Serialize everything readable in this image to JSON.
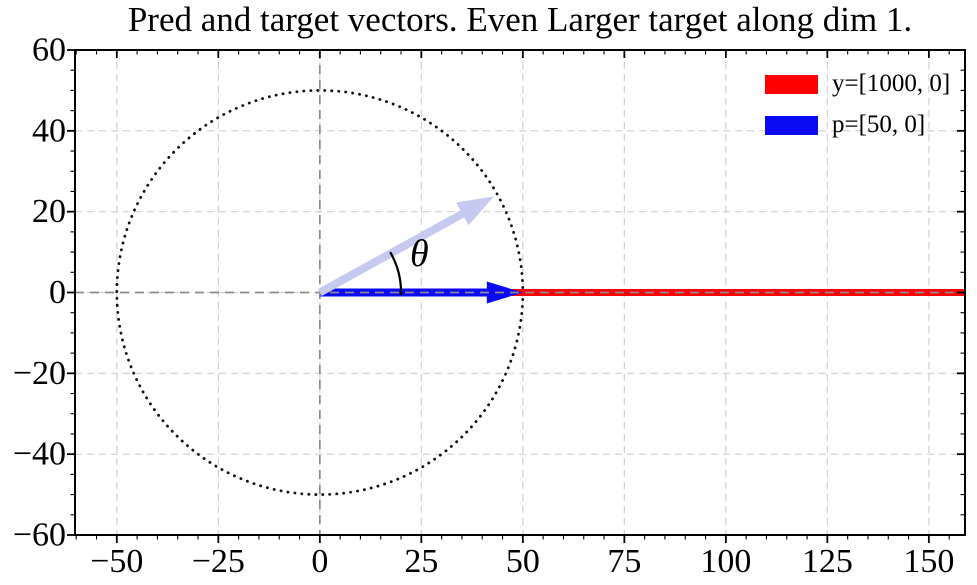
{
  "chart_data": {
    "type": "line",
    "subtype": "vector-diagram (quiver)",
    "title": "Pred and target vectors. Even Larger target along dim 1.",
    "xlim": [
      -60.3,
      158.9
    ],
    "ylim": [
      -60,
      60
    ],
    "x_major_ticks": [
      -50,
      -25,
      0,
      25,
      50,
      75,
      100,
      125,
      150
    ],
    "y_major_ticks": [
      -60,
      -40,
      -20,
      0,
      20,
      40,
      60
    ],
    "minor_tick_step": 5,
    "grid": {
      "on": true,
      "color": "#cfcfcf",
      "style": "dashed"
    },
    "axis_lines": {
      "x": 0,
      "y": 0,
      "color": "#8c8c8c",
      "style": "dashed"
    },
    "unit_circle": {
      "center": [
        0,
        0
      ],
      "radius": 50,
      "color": "#111111",
      "style": "dotted"
    },
    "vectors": [
      {
        "name": "y",
        "from": [
          0,
          0
        ],
        "to": [
          1000,
          0
        ],
        "color": "#ff0000",
        "label": "y=[1000, 0]"
      },
      {
        "name": "p",
        "from": [
          0,
          0
        ],
        "to": [
          50,
          0
        ],
        "color": "#0a0af5",
        "label": "p=[50, 0]"
      }
    ],
    "direction_arrow": {
      "from": [
        0,
        0
      ],
      "angle_deg": 29,
      "length": 49,
      "color": "#c6c9f0"
    },
    "angle_annotation": {
      "symbol": "θ",
      "arc_radius": 20,
      "from_deg": -2,
      "to_deg": 30,
      "arc_color": "#000000",
      "label_pos": [
        24.5,
        9.5
      ]
    },
    "legend": [
      {
        "label": "y=[1000, 0]",
        "color": "#ff0000"
      },
      {
        "label": "p=[50, 0]",
        "color": "#0a0af5"
      }
    ]
  }
}
